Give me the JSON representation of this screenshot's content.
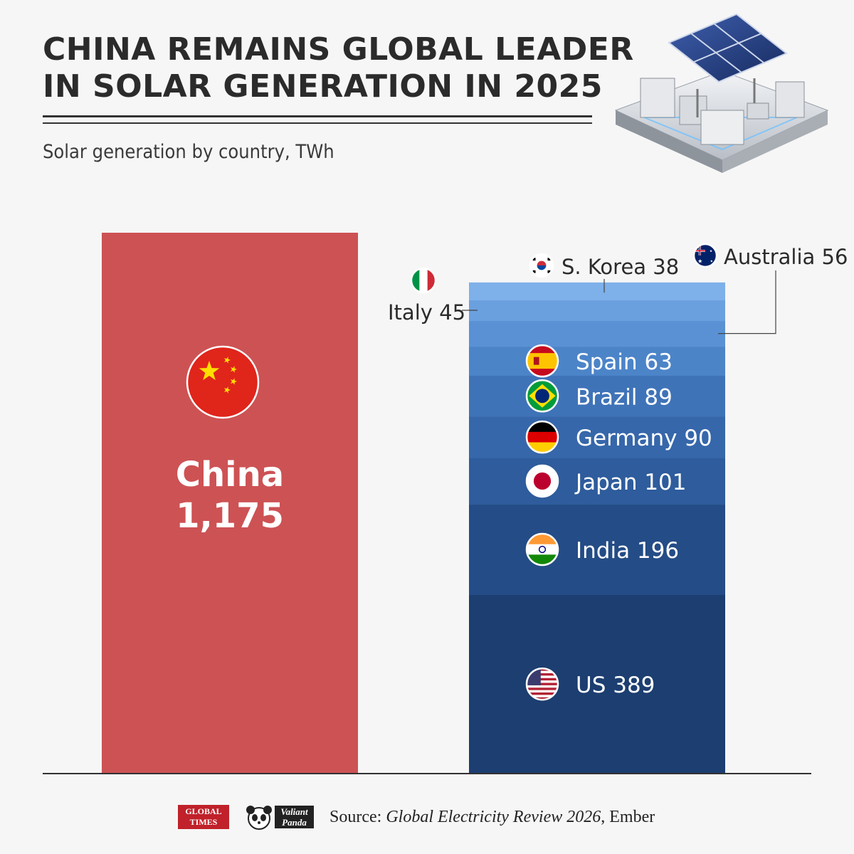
{
  "header": {
    "title_line1": "CHINA REMAINS GLOBAL LEADER",
    "title_line2": "IN SOLAR GENERATION IN 2025",
    "subtitle": "Solar generation by country, TWh"
  },
  "chart_data": {
    "type": "bar",
    "unit": "TWh",
    "title": "CHINA REMAINS GLOBAL LEADER IN SOLAR GENERATION IN 2025",
    "subtitle": "Solar generation by country, TWh",
    "china": {
      "name": "China",
      "value": 1175,
      "label": "1,175",
      "flag": "china-flag",
      "color": "#cd5254"
    },
    "stack": [
      {
        "name": "US",
        "value": 389,
        "label": "US 389",
        "flag": "us-flag",
        "color": "#1c3e70"
      },
      {
        "name": "India",
        "value": 196,
        "label": "India 196",
        "flag": "india-flag",
        "color": "#244c86"
      },
      {
        "name": "Japan",
        "value": 101,
        "label": "Japan 101",
        "flag": "japan-flag",
        "color": "#2e5c9c"
      },
      {
        "name": "Germany",
        "value": 90,
        "label": "Germany 90",
        "flag": "germany-flag",
        "color": "#3667aa"
      },
      {
        "name": "Brazil",
        "value": 89,
        "label": "Brazil 89",
        "flag": "brazil-flag",
        "color": "#3f73b8"
      },
      {
        "name": "Spain",
        "value": 63,
        "label": "Spain 63",
        "flag": "spain-flag",
        "color": "#4c84c8"
      },
      {
        "name": "Australia",
        "value": 56,
        "label": "Australia 56",
        "flag": "australia-flag",
        "color": "#5a91d5"
      },
      {
        "name": "Italy",
        "value": 45,
        "label": "Italy 45",
        "flag": "italy-flag",
        "color": "#6ba0df"
      },
      {
        "name": "S. Korea",
        "value": 38,
        "label": "S. Korea 38",
        "flag": "south-korea-flag",
        "color": "#7eb0ea"
      }
    ],
    "ylim": [
      0,
      1175
    ]
  },
  "footer": {
    "logo1_line1": "GLOBAL",
    "logo1_line2": "TIMES",
    "logo2_line1": "Valiant",
    "logo2_line2": "Panda",
    "source_prefix": "Source:",
    "source_title": "Global Electricity Review 2026",
    "source_suffix": ", Ember"
  }
}
